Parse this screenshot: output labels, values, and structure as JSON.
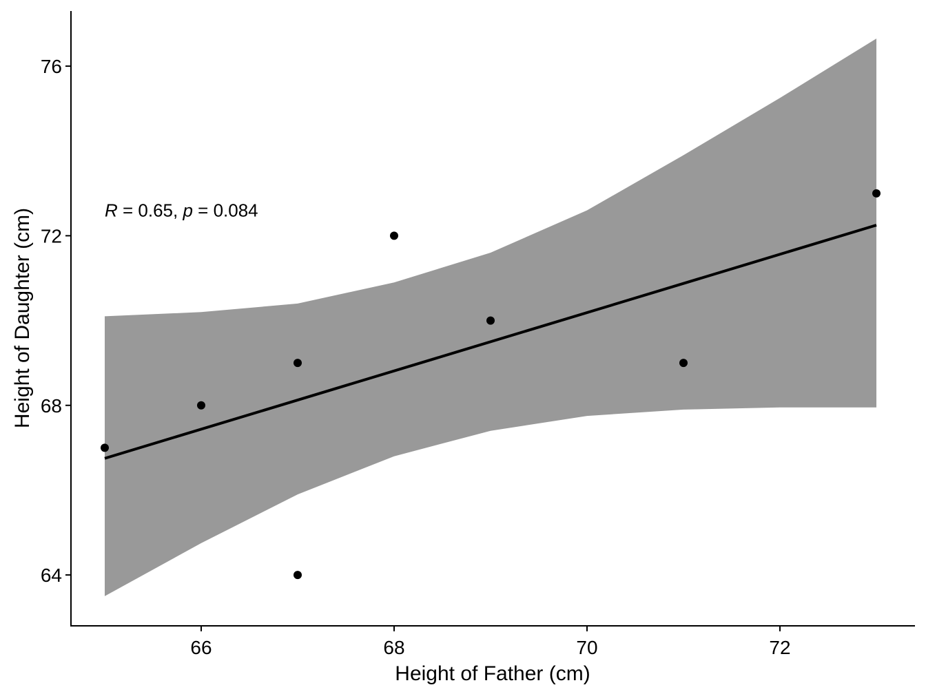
{
  "chart_data": {
    "type": "scatter",
    "xlabel": "Height of Father (cm)",
    "ylabel": "Height of Daughter (cm)",
    "xlim": [
      64.65,
      73.4
    ],
    "ylim": [
      62.8,
      77.3
    ],
    "x_ticks": [
      66,
      68,
      70,
      72
    ],
    "y_ticks": [
      64,
      68,
      72,
      76
    ],
    "grid": false,
    "points": [
      {
        "x": 65,
        "y": 67
      },
      {
        "x": 66,
        "y": 68
      },
      {
        "x": 67,
        "y": 69
      },
      {
        "x": 67,
        "y": 64
      },
      {
        "x": 68,
        "y": 72
      },
      {
        "x": 69,
        "y": 70
      },
      {
        "x": 71,
        "y": 69
      },
      {
        "x": 73,
        "y": 73
      }
    ],
    "regression": {
      "x_range": [
        65,
        73
      ],
      "line": [
        {
          "x": 65,
          "y": 66.75
        },
        {
          "x": 73,
          "y": 72.25
        }
      ],
      "ci_band": [
        {
          "x": 65,
          "lower": 63.5,
          "upper": 70.1
        },
        {
          "x": 66,
          "lower": 64.75,
          "upper": 70.2
        },
        {
          "x": 67,
          "lower": 65.9,
          "upper": 70.4
        },
        {
          "x": 68,
          "lower": 66.8,
          "upper": 70.9
        },
        {
          "x": 69,
          "lower": 67.4,
          "upper": 71.6
        },
        {
          "x": 70,
          "lower": 67.75,
          "upper": 72.6
        },
        {
          "x": 71,
          "lower": 67.9,
          "upper": 73.9
        },
        {
          "x": 72,
          "lower": 67.95,
          "upper": 75.25
        },
        {
          "x": 73,
          "lower": 67.95,
          "upper": 76.65
        }
      ],
      "band_color": "#999999",
      "line_color": "#000000"
    },
    "point_color": "#000000",
    "annotation": {
      "r_symbol": "R",
      "r_text": " = 0.65, ",
      "p_symbol": "p",
      "p_text": " = 0.084",
      "x": 65,
      "y": 72.6
    }
  }
}
